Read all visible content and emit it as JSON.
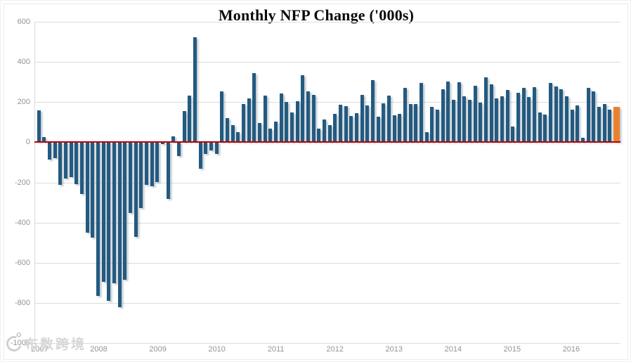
{
  "title": "Monthly NFP Change ('000s)",
  "watermark": {
    "icon": "copyright-camera-logo",
    "text": "布数跨境"
  },
  "chart_data": {
    "type": "bar",
    "title": "Monthly NFP Change ('000s)",
    "xlabel": "",
    "ylabel": "",
    "ylim": [
      -1000,
      600
    ],
    "grid": true,
    "y_ticks": [
      600,
      400,
      200,
      0,
      -200,
      -400,
      -600,
      -800,
      -1000
    ],
    "year_labels": [
      "2007",
      "2008",
      "2009",
      "2010",
      "2011",
      "2012",
      "2013",
      "2014",
      "2015",
      "2016"
    ],
    "zero_line_color": "#c00000",
    "bar_color": "#235a80",
    "highlight_color": "#e8822f",
    "highlight_last": true,
    "x": [
      "2007-12",
      "2008-01",
      "2008-02",
      "2008-03",
      "2008-04",
      "2008-05",
      "2008-06",
      "2008-07",
      "2008-08",
      "2008-09",
      "2008-10",
      "2008-11",
      "2008-12",
      "2009-01",
      "2009-02",
      "2009-03",
      "2009-04",
      "2009-05",
      "2009-06",
      "2009-07",
      "2009-08",
      "2009-09",
      "2009-10",
      "2009-11",
      "2009-12",
      "2010-01",
      "2010-02",
      "2010-03",
      "2010-04",
      "2010-05",
      "2010-06",
      "2010-07",
      "2010-08",
      "2010-09",
      "2010-10",
      "2010-11",
      "2010-12",
      "2011-01",
      "2011-02",
      "2011-03",
      "2011-04",
      "2011-05",
      "2011-06",
      "2011-07",
      "2011-08",
      "2011-09",
      "2011-10",
      "2011-11",
      "2011-12",
      "2012-01",
      "2012-02",
      "2012-03",
      "2012-04",
      "2012-05",
      "2012-06",
      "2012-07",
      "2012-08",
      "2012-09",
      "2012-10",
      "2012-11",
      "2012-12",
      "2013-01",
      "2013-02",
      "2013-03",
      "2013-04",
      "2013-05",
      "2013-06",
      "2013-07",
      "2013-08",
      "2013-09",
      "2013-10",
      "2013-11",
      "2013-12",
      "2014-01",
      "2014-02",
      "2014-03",
      "2014-04",
      "2014-05",
      "2014-06",
      "2014-07",
      "2014-08",
      "2014-09",
      "2014-10",
      "2014-11",
      "2014-12",
      "2015-01",
      "2015-02",
      "2015-03",
      "2015-04",
      "2015-05",
      "2015-06",
      "2015-07",
      "2015-08",
      "2015-09",
      "2015-10",
      "2015-11",
      "2015-12",
      "2016-01",
      "2016-02",
      "2016-03",
      "2016-04",
      "2016-05",
      "2016-06",
      "2016-07",
      "2016-08",
      "2016-09",
      "2016-10",
      "2016-11"
    ],
    "values": [
      160,
      25,
      -86,
      -80,
      -214,
      -182,
      -172,
      -210,
      -259,
      -452,
      -474,
      -765,
      -697,
      -791,
      -703,
      -823,
      -686,
      -351,
      -470,
      -329,
      -212,
      -219,
      -198,
      -10,
      -283,
      28,
      -69,
      157,
      232,
      522,
      -133,
      -58,
      -40,
      -58,
      253,
      121,
      86,
      50,
      189,
      220,
      343,
      95,
      232,
      67,
      102,
      244,
      200,
      147,
      206,
      333,
      253,
      235,
      67,
      112,
      86,
      140,
      186,
      179,
      130,
      144,
      235,
      182,
      309,
      126,
      193,
      232,
      133,
      140,
      270,
      189,
      189,
      295,
      49,
      176,
      162,
      265,
      303,
      210,
      299,
      229,
      212,
      280,
      197,
      323,
      288,
      218,
      230,
      260,
      77,
      247,
      270,
      226,
      273,
      147,
      139,
      294,
      277,
      265,
      230,
      161,
      182,
      21,
      271,
      252,
      176,
      191,
      161,
      178
    ]
  }
}
